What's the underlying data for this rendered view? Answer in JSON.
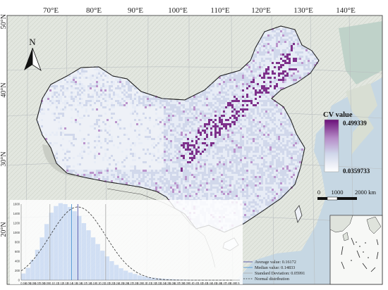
{
  "map": {
    "longitude_labels": [
      "70°E",
      "80°E",
      "90°E",
      "100°E",
      "110°E",
      "120°E",
      "130°E",
      "140°E"
    ],
    "latitude_labels": [
      "50°N",
      "40°N",
      "30°N",
      "20°N"
    ],
    "north_arrow_label": "N"
  },
  "legend": {
    "title": "CV value",
    "max_value": "0.499339",
    "min_value": "0.0359733",
    "colors": [
      "#6a0f78",
      "#b58ac7",
      "#cfd6ea",
      "#ffffff"
    ]
  },
  "scale_bar": {
    "labels": [
      "0",
      "1000",
      "2000 km"
    ]
  },
  "histogram": {
    "y_ticks": [
      "0",
      "200",
      "400",
      "600",
      "800",
      "1000",
      "1200",
      "1400",
      "1600"
    ],
    "x_ticks": [
      "0.04",
      "0.05",
      "0.06",
      "0.07",
      "0.08",
      "0.09",
      "0.1",
      "0.11",
      "0.12",
      "0.13",
      "0.14",
      "0.15",
      "0.16",
      "0.17",
      "0.18",
      "0.19",
      "0.2",
      "0.21",
      "0.22",
      "0.23",
      "0.24",
      "0.25",
      "0.26",
      "0.27",
      "0.28",
      "0.29",
      "0.3",
      "0.31",
      "0.32",
      "0.33",
      "0.34",
      "0.35",
      "0.36",
      "0.37",
      "0.38",
      "0.39",
      "0.4",
      "0.41",
      "0.42",
      "0.43",
      "0.44",
      "0.45",
      "0.46",
      "0.47",
      "0.48",
      "0.49",
      "0.5"
    ],
    "bar_counts": [
      140,
      260,
      430,
      640,
      900,
      1180,
      1420,
      1560,
      1620,
      1600,
      1540,
      1450,
      1350,
      1200,
      1050,
      900,
      760,
      620,
      500,
      400,
      320,
      250,
      200,
      160,
      130,
      100,
      80,
      60,
      50,
      40,
      30,
      25,
      20,
      15,
      12,
      10,
      8,
      6,
      5,
      4,
      3,
      2,
      2,
      1,
      1,
      1
    ],
    "y_max": 1600,
    "stats": {
      "average": "Average value: 0.16172",
      "median": "Median value: 0.14833",
      "std": "Standard Deviation: 0.05991",
      "normal": "Normal distribution"
    },
    "colors": {
      "bars": "#c9d9f2",
      "average_line": "#3c3c9e",
      "median_line": "#3f8fd0",
      "std_line": "#aaaaaa"
    }
  }
}
